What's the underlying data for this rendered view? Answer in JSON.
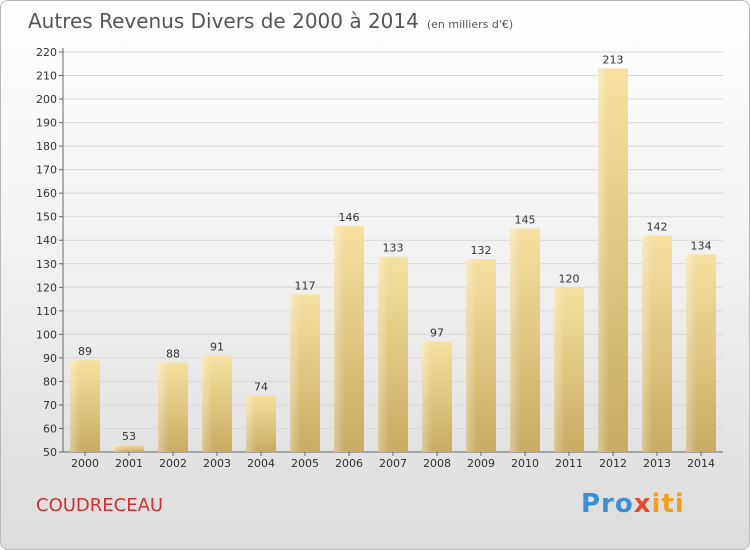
{
  "title": "Autres Revenus Divers de 2000 à 2014",
  "subtitle": "(en milliers d'€)",
  "commune": "COUDRECEAU",
  "brand": {
    "parts": [
      "Pro",
      "x",
      "iti"
    ],
    "colors": [
      "#3c8fd4",
      "#e24b2b",
      "#f0a020"
    ]
  },
  "colors": {
    "bar_light": "#f7e1a0",
    "bar_dark": "#c8ab62",
    "grid": "#d8d8d8"
  },
  "chart_data": {
    "type": "bar",
    "title": "Autres Revenus Divers de 2000 à 2014",
    "subtitle": "(en milliers d'€)",
    "categories": [
      "2000",
      "2001",
      "2002",
      "2003",
      "2004",
      "2005",
      "2006",
      "2007",
      "2008",
      "2009",
      "2010",
      "2011",
      "2012",
      "2013",
      "2014"
    ],
    "values": [
      89,
      53,
      88,
      91,
      74,
      117,
      146,
      133,
      97,
      132,
      145,
      120,
      213,
      142,
      134
    ],
    "ylim": [
      50,
      220
    ],
    "yticks": [
      50,
      60,
      70,
      80,
      90,
      100,
      110,
      120,
      130,
      140,
      150,
      160,
      170,
      180,
      190,
      200,
      210,
      220
    ],
    "grid": true,
    "xlabel": "",
    "ylabel": ""
  }
}
